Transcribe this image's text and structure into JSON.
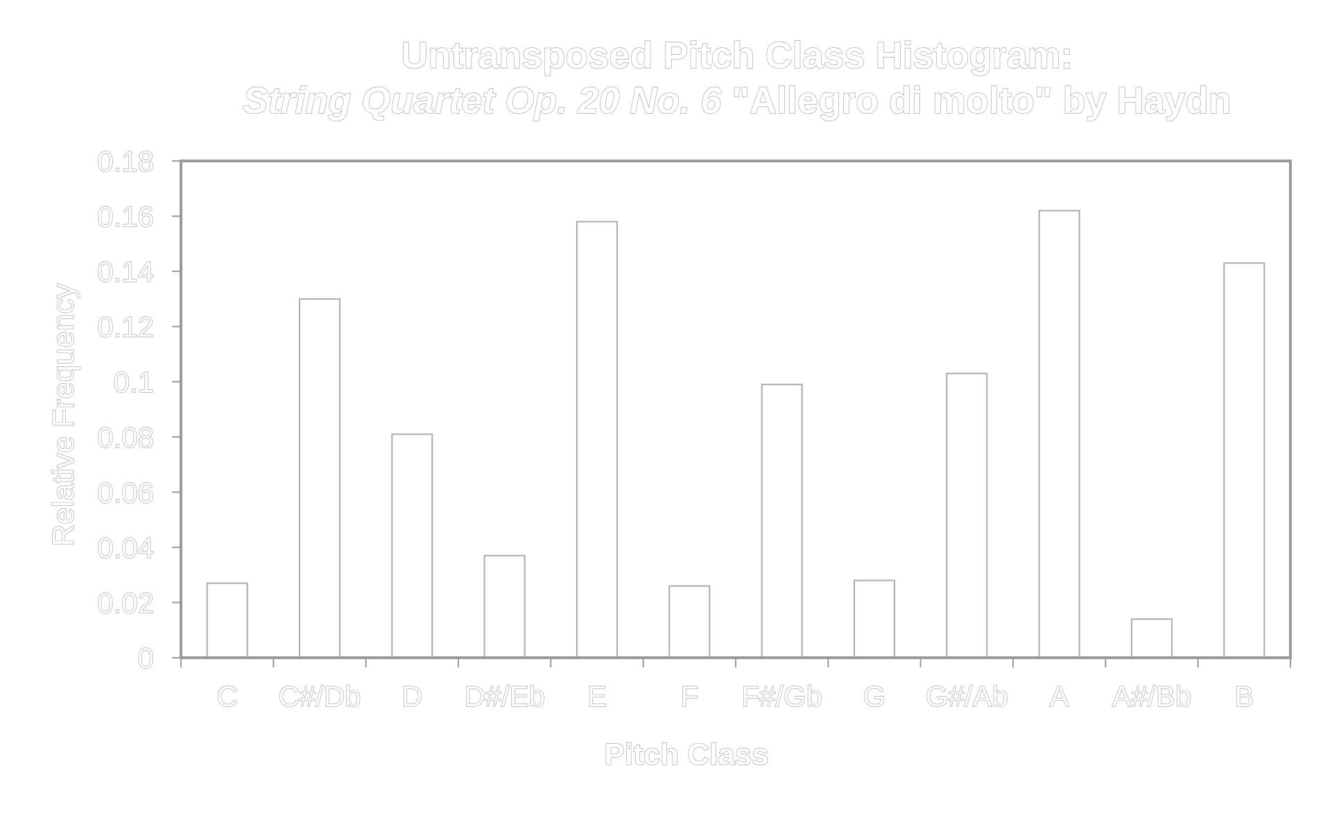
{
  "chart_data": {
    "type": "bar",
    "title": "Untransposed Pitch Class Histogram:",
    "subtitle_italic": "String Quartet Op. 20 No. 6",
    "subtitle_rest": " \"Allegro di molto\" by Haydn",
    "xlabel": "Pitch Class",
    "ylabel": "Relative Frequency",
    "categories": [
      "C",
      "C#/Db",
      "D",
      "D#/Eb",
      "E",
      "F",
      "F#/Gb",
      "G",
      "G#/Ab",
      "A",
      "A#/Bb",
      "B"
    ],
    "values": [
      0.027,
      0.13,
      0.081,
      0.037,
      0.158,
      0.026,
      0.099,
      0.028,
      0.103,
      0.162,
      0.014,
      0.143
    ],
    "ylim": [
      0,
      0.18
    ],
    "yticks": [
      "0",
      "0.02",
      "0.04",
      "0.06",
      "0.08",
      "0.1",
      "0.12",
      "0.14",
      "0.16",
      "0.18"
    ],
    "grid": false,
    "legend": "none",
    "colors": {
      "background": "#ffffff",
      "bar_fill": "#ffffff",
      "bar_stroke": "#aaaaaa",
      "axis": "#999999",
      "text_outline": "#9a9a9a"
    }
  }
}
